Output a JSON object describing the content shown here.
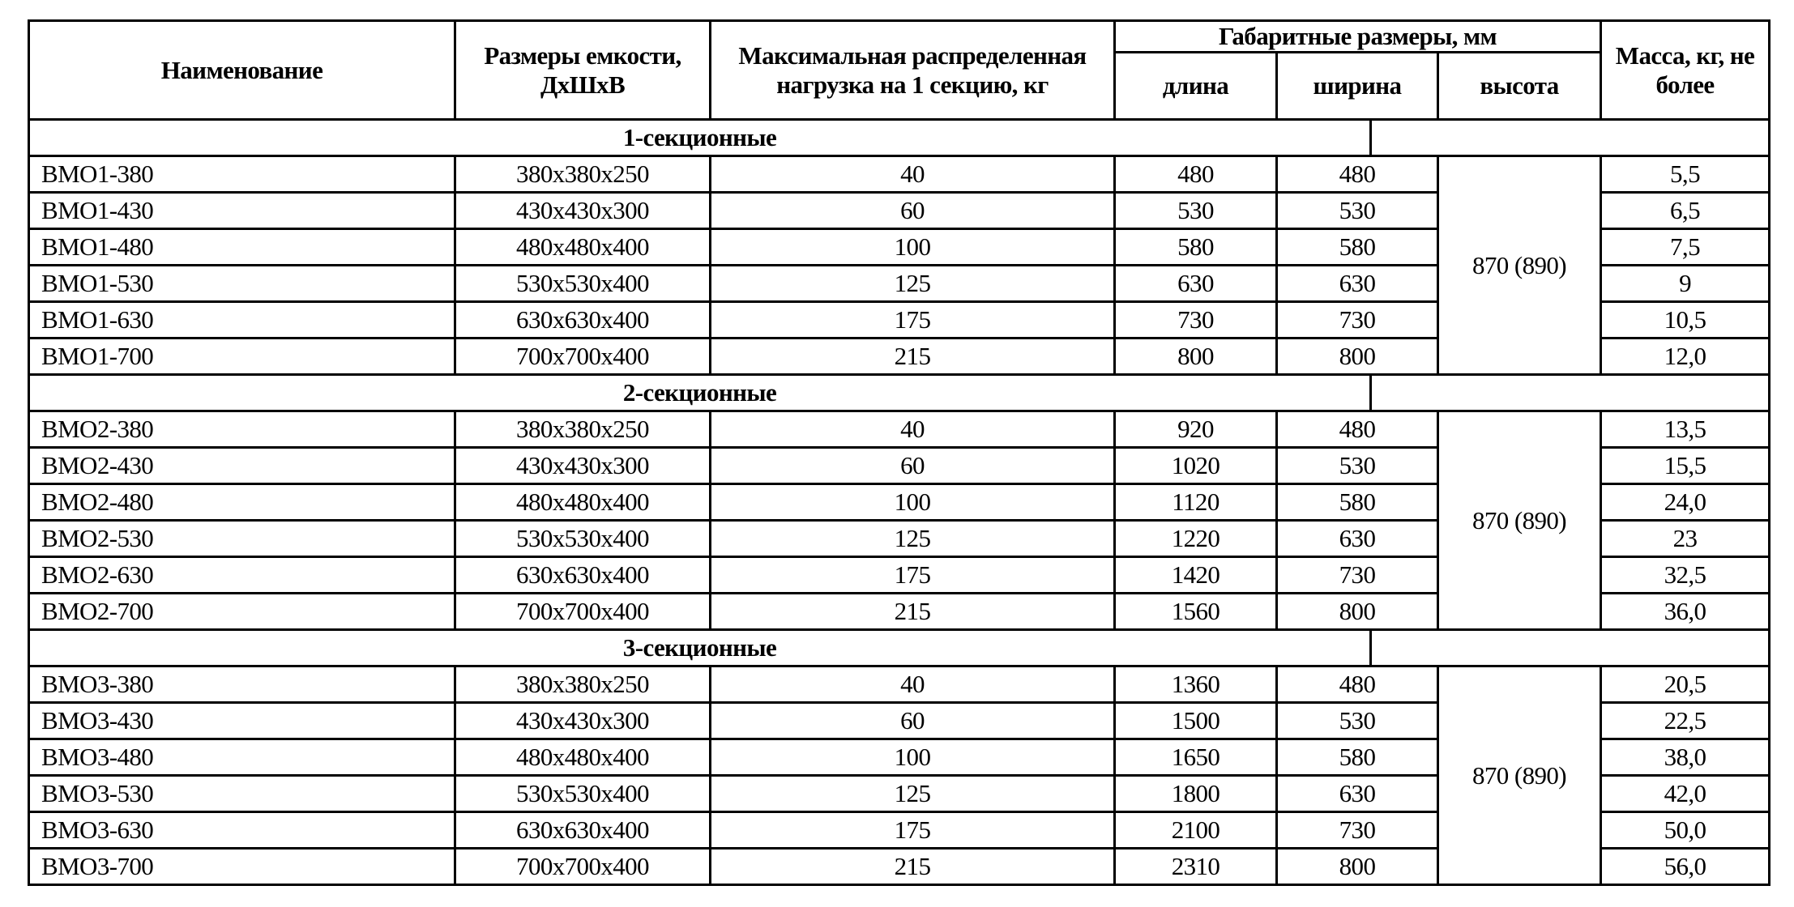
{
  "headers": {
    "name": "Наименование",
    "size": "Размеры емкости, ДхШхВ",
    "load": "Максимальная распределенная нагрузка на 1 секцию, кг",
    "overall": "Габаритные размеры, мм",
    "length": "длина",
    "width": "ширина",
    "height": "высота",
    "mass": "Масса, кг, не более"
  },
  "sections": [
    {
      "title": "1-секционные",
      "height_value": "870 (890)",
      "rows": [
        [
          "ВМО1-380",
          "380х380х250",
          "40",
          "480",
          "480",
          "5,5"
        ],
        [
          "ВМО1-430",
          "430х430х300",
          "60",
          "530",
          "530",
          "6,5"
        ],
        [
          "ВМО1-480",
          "480х480х400",
          "100",
          "580",
          "580",
          "7,5"
        ],
        [
          "ВМО1-530",
          "530х530х400",
          "125",
          "630",
          "630",
          "9"
        ],
        [
          "ВМО1-630",
          "630х630х400",
          "175",
          "730",
          "730",
          "10,5"
        ],
        [
          "ВМО1-700",
          "700х700х400",
          "215",
          "800",
          "800",
          "12,0"
        ]
      ]
    },
    {
      "title": "2-секционные",
      "height_value": "870 (890)",
      "rows": [
        [
          "ВМО2-380",
          "380х380х250",
          "40",
          "920",
          "480",
          "13,5"
        ],
        [
          "ВМО2-430",
          "430х430х300",
          "60",
          "1020",
          "530",
          "15,5"
        ],
        [
          "ВМО2-480",
          "480х480х400",
          "100",
          "1120",
          "580",
          "24,0"
        ],
        [
          "ВМО2-530",
          "530х530х400",
          "125",
          "1220",
          "630",
          "23"
        ],
        [
          "ВМО2-630",
          "630х630х400",
          "175",
          "1420",
          "730",
          "32,5"
        ],
        [
          "ВМО2-700",
          "700х700х400",
          "215",
          "1560",
          "800",
          "36,0"
        ]
      ]
    },
    {
      "title": "3-секционные",
      "height_value": "870 (890)",
      "rows": [
        [
          "ВМО3-380",
          "380х380х250",
          "40",
          "1360",
          "480",
          "20,5"
        ],
        [
          "ВМО3-430",
          "430х430х300",
          "60",
          "1500",
          "530",
          "22,5"
        ],
        [
          "ВМО3-480",
          "480х480х400",
          "100",
          "1650",
          "580",
          "38,0"
        ],
        [
          "ВМО3-530",
          "530х530х400",
          "125",
          "1800",
          "630",
          "42,0"
        ],
        [
          "ВМО3-630",
          "630х630х400",
          "175",
          "2100",
          "730",
          "50,0"
        ],
        [
          "ВМО3-700",
          "700х700х400",
          "215",
          "2310",
          "800",
          "56,0"
        ]
      ]
    }
  ]
}
